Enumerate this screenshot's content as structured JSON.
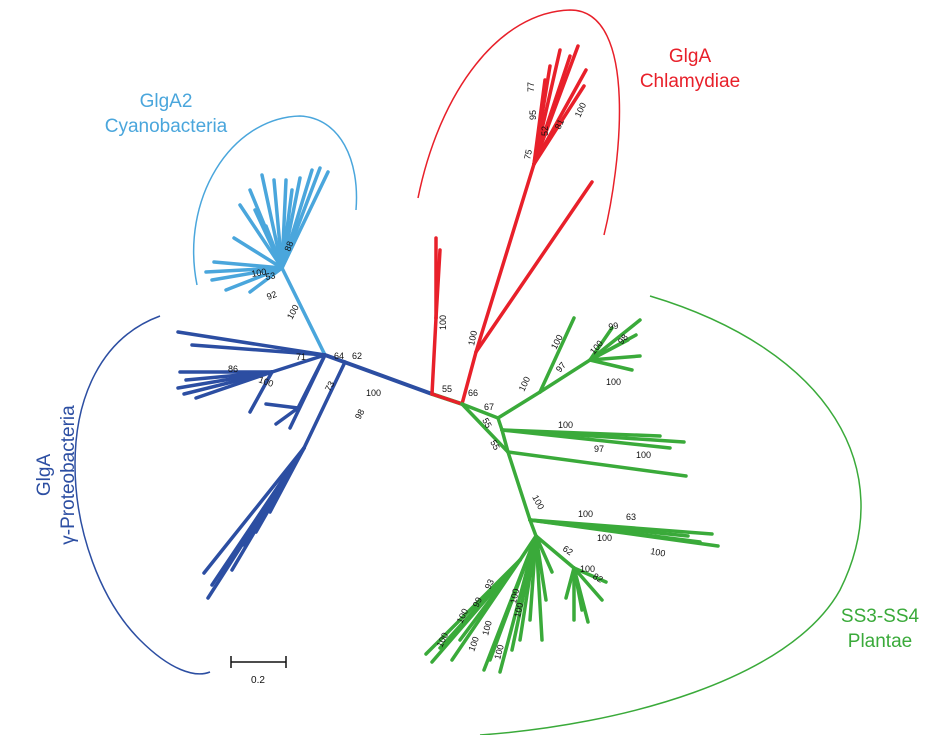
{
  "colors": {
    "cyano": "#4aa6dc",
    "proteo": "#2c4ea2",
    "chlamydiae": "#e8202a",
    "plantae": "#3aaa3a",
    "text": "#111111"
  },
  "clades": {
    "cyano": {
      "line1": "GlgA2",
      "line2": "Cyanobacteria"
    },
    "proteo": {
      "line1": "GlgA",
      "line2": "γ-Proteobacteria"
    },
    "chlamydiae": {
      "line1": "GlgA",
      "line2": "Chlamydiae"
    },
    "plantae": {
      "line1": "SS3-SS4",
      "line2": "Plantae"
    }
  },
  "scale_bar": {
    "label": "0.2"
  },
  "bootstrap": {
    "cyano": [
      "88",
      "100",
      "53",
      "92",
      "100"
    ],
    "proteo": [
      "64",
      "62",
      "71",
      "86",
      "100",
      "73",
      "100",
      "98"
    ],
    "chlamydiae": [
      "77",
      "95",
      "52",
      "75",
      "81",
      "100",
      "100",
      "100",
      "55"
    ],
    "plantae": [
      "66",
      "67",
      "55",
      "55",
      "100",
      "99",
      "97",
      "100",
      "98",
      "100",
      "100",
      "97",
      "100",
      "100",
      "100",
      "100",
      "63",
      "100",
      "100",
      "62",
      "100",
      "82",
      "93",
      "99",
      "100",
      "100",
      "100",
      "100",
      "100",
      "100",
      "100"
    ]
  }
}
